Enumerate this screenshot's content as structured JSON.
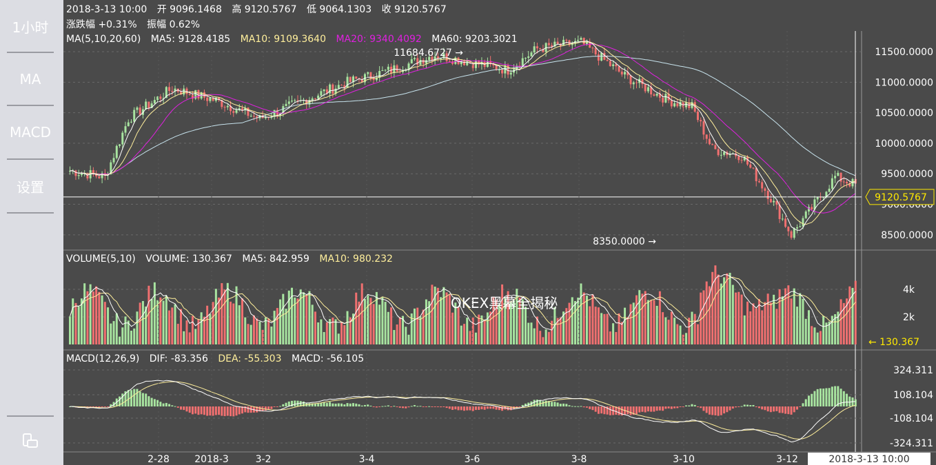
{
  "sidebar": {
    "interval": "1小时",
    "ma": "MA",
    "macd": "MACD",
    "settings": "设置",
    "rotate_icon": "rotate-screen-icon"
  },
  "header": {
    "datetime": "2018-3-13 10:00",
    "open_label": "开",
    "open": "9096.1468",
    "high_label": "高",
    "high": "9120.5767",
    "low_label": "低",
    "low": "9064.1303",
    "close_label": "收",
    "close": "9120.5767",
    "change_label": "涨跌幅",
    "change": "+0.31%",
    "amplitude_label": "振幅",
    "amplitude": "0.62%"
  },
  "ma_legend": {
    "title": "MA(5,10,20,60)",
    "ma5": "MA5: 9128.4185",
    "ma10": "MA10: 9109.3640",
    "ma20": "MA20: 9340.4092",
    "ma60": "MA60: 9203.3021"
  },
  "volume_legend": {
    "title": "VOLUME(5,10)",
    "volume": "VOLUME: 130.367",
    "ma5": "MA5: 842.959",
    "ma10": "MA10: 980.232"
  },
  "macd_legend": {
    "title": "MACD(12,26,9)",
    "dif": "DIF: -83.356",
    "dea": "DEA: -55.303",
    "macd": "MACD: -56.105"
  },
  "price_axis": [
    "11500.0000",
    "11000.0000",
    "10500.0000",
    "10000.0000",
    "9500.0000",
    "9000.0000",
    "8500.0000"
  ],
  "current_price": "9120.5767",
  "max_marker": "11684.6727",
  "min_marker": "8350.0000",
  "volume_axis": [
    "4k",
    "2k"
  ],
  "current_volume": "130.367",
  "macd_axis": [
    "324.311",
    "108.104",
    "-108.104",
    "-324.311"
  ],
  "time_axis": [
    "2-28",
    "2018-3",
    "3-2",
    "3-4",
    "3-6",
    "3-8",
    "3-10",
    "3-12"
  ],
  "cursor_time": "2018-3-13  10:00",
  "watermark": "OKEX黑幕全揭秘",
  "colors": {
    "up": "#a8e4a0",
    "down": "#f07070",
    "ma5": "#ffffff",
    "ma10": "#ffef9c",
    "ma20": "#e020e0",
    "ma60": "#c8e4ee",
    "price_tag": "#ffe900"
  }
}
